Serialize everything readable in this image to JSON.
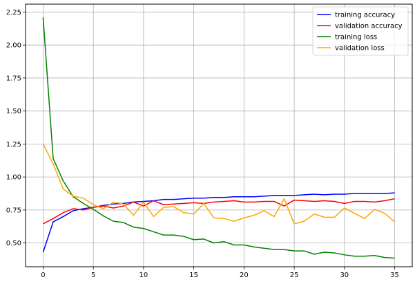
{
  "chart_data": {
    "type": "line",
    "title": "",
    "xlabel": "",
    "ylabel": "",
    "xlim": [
      -1.75,
      36.75
    ],
    "ylim": [
      0.32,
      2.31
    ],
    "x_ticks": [
      0,
      5,
      10,
      15,
      20,
      25,
      30,
      35
    ],
    "x_tick_labels": [
      "0",
      "5",
      "10",
      "15",
      "20",
      "25",
      "30",
      "35"
    ],
    "y_ticks": [
      0.5,
      0.75,
      1.0,
      1.25,
      1.5,
      1.75,
      2.0,
      2.25
    ],
    "y_tick_labels": [
      "0.50",
      "0.75",
      "1.00",
      "1.25",
      "1.50",
      "1.75",
      "2.00",
      "2.25"
    ],
    "grid": true,
    "legend_position": "top-right",
    "x": [
      0,
      1,
      2,
      3,
      4,
      5,
      6,
      7,
      8,
      9,
      10,
      11,
      12,
      13,
      14,
      15,
      16,
      17,
      18,
      19,
      20,
      21,
      22,
      23,
      24,
      25,
      26,
      27,
      28,
      29,
      30,
      31,
      32,
      33,
      34,
      35
    ],
    "series": [
      {
        "name": "training accuracy",
        "color": "#0000ff",
        "values": [
          0.43,
          0.66,
          0.7,
          0.745,
          0.76,
          0.77,
          0.785,
          0.795,
          0.8,
          0.81,
          0.815,
          0.82,
          0.83,
          0.83,
          0.835,
          0.84,
          0.84,
          0.845,
          0.845,
          0.85,
          0.85,
          0.85,
          0.855,
          0.86,
          0.86,
          0.86,
          0.865,
          0.87,
          0.865,
          0.87,
          0.87,
          0.875,
          0.875,
          0.875,
          0.875,
          0.88
        ]
      },
      {
        "name": "validation accuracy",
        "color": "#ff0000",
        "values": [
          0.645,
          0.685,
          0.73,
          0.76,
          0.75,
          0.77,
          0.78,
          0.765,
          0.78,
          0.81,
          0.78,
          0.82,
          0.79,
          0.795,
          0.8,
          0.805,
          0.8,
          0.81,
          0.815,
          0.82,
          0.81,
          0.81,
          0.815,
          0.815,
          0.78,
          0.825,
          0.82,
          0.815,
          0.82,
          0.815,
          0.8,
          0.815,
          0.815,
          0.81,
          0.82,
          0.835
        ]
      },
      {
        "name": "training loss",
        "color": "#008000",
        "values": [
          2.21,
          1.14,
          0.97,
          0.85,
          0.8,
          0.755,
          0.705,
          0.665,
          0.655,
          0.62,
          0.61,
          0.585,
          0.56,
          0.56,
          0.55,
          0.525,
          0.53,
          0.5,
          0.51,
          0.485,
          0.485,
          0.47,
          0.46,
          0.45,
          0.45,
          0.44,
          0.44,
          0.415,
          0.43,
          0.425,
          0.41,
          0.4,
          0.4,
          0.405,
          0.39,
          0.385
        ]
      },
      {
        "name": "validation loss",
        "color": "#ffa500",
        "values": [
          1.25,
          1.1,
          0.91,
          0.855,
          0.84,
          0.79,
          0.76,
          0.81,
          0.795,
          0.71,
          0.81,
          0.7,
          0.77,
          0.775,
          0.73,
          0.72,
          0.8,
          0.69,
          0.685,
          0.665,
          0.69,
          0.71,
          0.745,
          0.7,
          0.835,
          0.645,
          0.665,
          0.72,
          0.695,
          0.695,
          0.765,
          0.725,
          0.685,
          0.755,
          0.725,
          0.66
        ]
      }
    ]
  }
}
